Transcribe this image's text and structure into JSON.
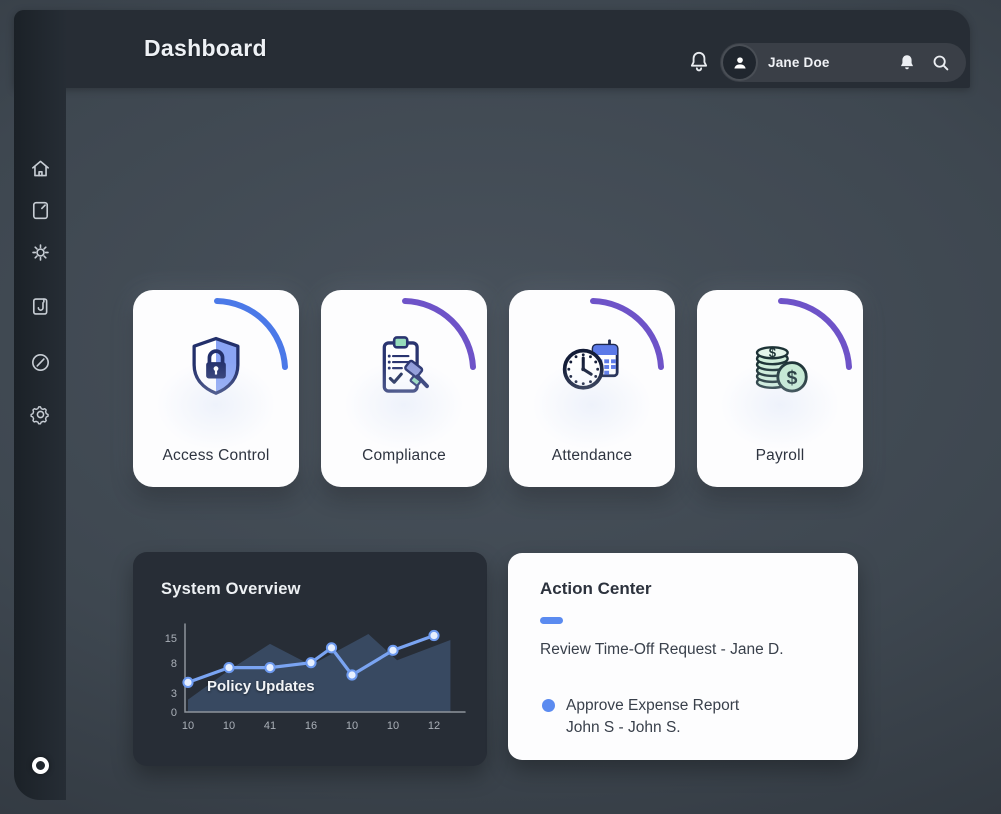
{
  "app": {
    "title": "Dashboard"
  },
  "topbar": {
    "user_name": "Jane Doe",
    "icons": [
      "bell-icon",
      "avatar",
      "bell-filled-icon",
      "search-icon"
    ]
  },
  "sidebar": {
    "menu_icon": "hamburger-icon",
    "items": [
      {
        "icon": "home-icon"
      },
      {
        "icon": "note-icon"
      },
      {
        "icon": "gear-spoke-icon"
      },
      {
        "icon": "journal-icon"
      },
      {
        "icon": "compass-icon"
      },
      {
        "icon": "settings-gear-icon"
      }
    ],
    "footer_icon": "record-circle-icon"
  },
  "feature_cards": [
    {
      "label": "Access Control",
      "icon": "shield-lock-icon",
      "arc_color": "#4b79e8"
    },
    {
      "label": "Compliance",
      "icon": "clipboard-gavel-icon",
      "arc_color": "#6e53c8"
    },
    {
      "label": "Attendance",
      "icon": "clock-calendar-icon",
      "arc_color": "#6e53c8"
    },
    {
      "label": "Payroll",
      "icon": "coins-icon",
      "arc_color": "#6e53c8"
    }
  ],
  "system_overview": {
    "title": "System Overview",
    "series_label": "Policy Updates"
  },
  "chart_data": {
    "type": "line",
    "title": "System Overview",
    "series": [
      {
        "name": "Policy Updates",
        "x": [
          0,
          1,
          2,
          3,
          3.5,
          4,
          5,
          6
        ],
        "values": [
          6,
          9,
          9,
          10,
          13,
          7.5,
          12.5,
          15.5
        ]
      }
    ],
    "background_area": {
      "x": [
        0,
        1,
        2,
        3,
        4.4,
        5.1,
        6.4
      ],
      "values": [
        2.5,
        8.5,
        13.8,
        9.5,
        15.8,
        10.5,
        14.6
      ]
    },
    "x_tick_labels": [
      "10",
      "10",
      "41",
      "16",
      "10",
      "10",
      "12"
    ],
    "y_tick_labels": [
      "15",
      "8",
      "3",
      "0"
    ],
    "ylim": [
      0,
      15
    ],
    "grid": false,
    "legend_position": "inside-bottom-left",
    "line_color": "#7aa4f2",
    "point_fill": "#e6efff",
    "point_stroke": "#6d9af0",
    "area_color": "rgba(96,138,199,0.30)",
    "axis_color": "#8d949c",
    "tick_label_color": "#aab0b8"
  },
  "action_center": {
    "title": "Action Center",
    "items": [
      {
        "text": "Review Time-Off Request - Jane D."
      },
      {
        "text": "Approve Expense Report",
        "subtext": "John S - John S."
      }
    ]
  },
  "colors": {
    "accent_blue": "#5b8bf0",
    "accent_purple": "#6e53c8",
    "card_bg": "#fdfdfe",
    "panel_bg": "#272d36"
  }
}
